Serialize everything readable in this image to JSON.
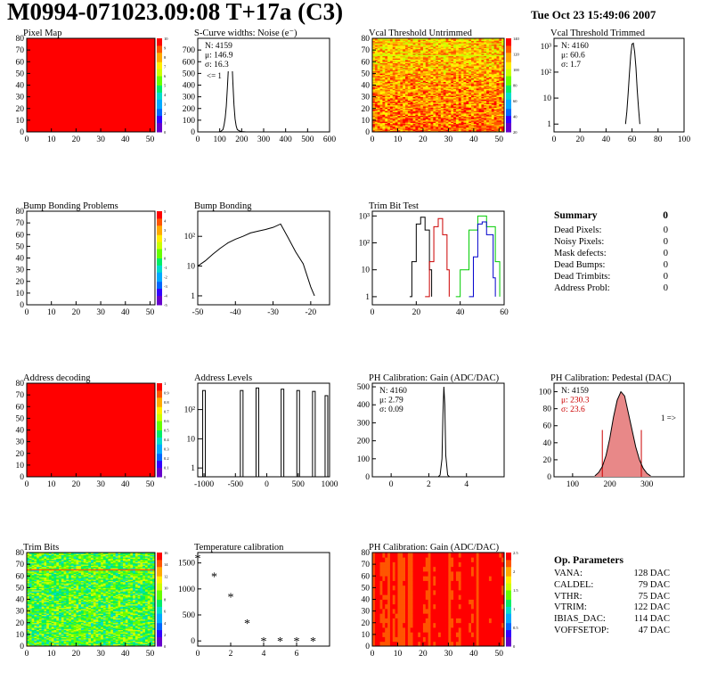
{
  "header": {
    "title": "M0994-071023.09:08 T+17a (C3)",
    "date": "Tue Oct 23 15:49:06 2007"
  },
  "colors": {
    "red_map": "#ff0000",
    "red_curve": "#cc0000",
    "green_curve": "#00cc00",
    "blue_curve": "#0000cc",
    "pedestal_fill": "#e88888",
    "stats_red": "#cc0000",
    "palette": [
      "#6600cc",
      "#3300ff",
      "#0066ff",
      "#00aaff",
      "#00ddcc",
      "#00ee66",
      "#66ff00",
      "#ccff00",
      "#ffee00",
      "#ffaa00",
      "#ff5500",
      "#ff0000"
    ]
  },
  "chart_data": [
    {
      "id": "pixel-map",
      "type": "heatmap",
      "title": "Pixel Map",
      "xlim": [
        0,
        52
      ],
      "ylim": [
        0,
        80
      ],
      "xticks": [
        0,
        10,
        20,
        30,
        40,
        50
      ],
      "yticks": [
        0,
        10,
        20,
        30,
        40,
        50,
        60,
        70,
        80
      ],
      "zticks": [
        "10",
        "9",
        "8",
        "7",
        "6",
        "5",
        "4",
        "3",
        "2",
        "1",
        "0"
      ],
      "fill": "uniform_max"
    },
    {
      "id": "s-curve",
      "type": "histogram",
      "title": "S-Curve widths: Noise (e⁻)",
      "xlim": [
        0,
        600
      ],
      "ylim": [
        0,
        800
      ],
      "xticks": [
        0,
        100,
        200,
        300,
        400,
        500,
        600
      ],
      "yticks": [
        0,
        100,
        200,
        300,
        400,
        500,
        600,
        700
      ],
      "stats": [
        "N: 4159",
        "μ: 146.9",
        "σ: 16.3"
      ],
      "annotation": "<= 1",
      "x": [
        95,
        105,
        115,
        120,
        125,
        130,
        135,
        140,
        145,
        150,
        155,
        160,
        165,
        170,
        175,
        180,
        190,
        200,
        220
      ],
      "y": [
        0,
        5,
        20,
        60,
        120,
        220,
        380,
        560,
        700,
        760,
        640,
        420,
        230,
        110,
        50,
        20,
        8,
        3,
        0
      ]
    },
    {
      "id": "vcal-untrimmed",
      "type": "heatmap",
      "title": "Vcal Threshold Untrimmed",
      "xlim": [
        0,
        52
      ],
      "ylim": [
        0,
        80
      ],
      "xticks": [
        0,
        10,
        20,
        30,
        40,
        50
      ],
      "yticks": [
        0,
        10,
        20,
        30,
        40,
        50,
        60,
        70,
        80
      ],
      "zticks": [
        "140",
        "120",
        "100",
        "80",
        "60",
        "40",
        "20"
      ],
      "fill": "noisy_orange"
    },
    {
      "id": "vcal-trimmed",
      "type": "histogram",
      "title": "Vcal Threshold Trimmed",
      "xlim": [
        0,
        100
      ],
      "ylim": [
        0.5,
        2000
      ],
      "log_y": true,
      "xticks": [
        0,
        20,
        40,
        60,
        80,
        100
      ],
      "yticks": [
        "1",
        "10",
        "10²",
        "10³"
      ],
      "stats": [
        "N: 4160",
        "μ: 60.6",
        "σ:   1.7"
      ],
      "x": [
        55,
        56,
        57,
        58,
        59,
        60,
        61,
        62,
        63,
        64,
        65,
        66
      ],
      "y": [
        1,
        3,
        15,
        90,
        450,
        1200,
        1300,
        600,
        150,
        20,
        4,
        1
      ]
    },
    {
      "id": "bump-problems",
      "type": "heatmap",
      "title": "Bump Bonding Problems",
      "xlim": [
        0,
        52
      ],
      "ylim": [
        0,
        80
      ],
      "xticks": [
        0,
        10,
        20,
        30,
        40,
        50
      ],
      "yticks": [
        0,
        10,
        20,
        30,
        40,
        50,
        60,
        70,
        80
      ],
      "zticks": [
        "5",
        "4",
        "3",
        "2",
        "1",
        "0",
        "-1",
        "-2",
        "-3",
        "-4",
        "-5"
      ],
      "fill": "empty"
    },
    {
      "id": "bump-bonding",
      "type": "histogram",
      "title": "Bump Bonding",
      "xlim": [
        -50,
        -15
      ],
      "ylim": [
        0.5,
        700
      ],
      "log_y": true,
      "xticks": [
        -50,
        -40,
        -30,
        -20
      ],
      "yticks": [
        "1",
        "10",
        "10²"
      ],
      "x": [
        -50,
        -48,
        -46,
        -44,
        -42,
        -40,
        -38,
        -36,
        -34,
        -32,
        -30,
        -28,
        -26,
        -24,
        -22,
        -20,
        -19
      ],
      "y": [
        10,
        15,
        25,
        40,
        60,
        80,
        100,
        130,
        150,
        170,
        200,
        260,
        90,
        30,
        12,
        2,
        1
      ]
    },
    {
      "id": "trim-bit-test",
      "type": "histogram",
      "title": "Trim Bit Test",
      "xlim": [
        0,
        60
      ],
      "ylim": [
        0.5,
        1500
      ],
      "log_y": true,
      "xticks": [
        0,
        20,
        40,
        60
      ],
      "yticks": [
        "1",
        "10",
        "10²",
        "10³"
      ],
      "series": [
        {
          "color": "#000000",
          "x": [
            17,
            18,
            20,
            22,
            24,
            26,
            27
          ],
          "y": [
            1,
            20,
            500,
            900,
            300,
            10,
            1
          ]
        },
        {
          "color": "#cc0000",
          "x": [
            24,
            26,
            28,
            30,
            32,
            34,
            35
          ],
          "y": [
            1,
            20,
            400,
            800,
            200,
            10,
            1
          ]
        },
        {
          "color": "#00cc00",
          "x": [
            38,
            40,
            44,
            48,
            52,
            56,
            58
          ],
          "y": [
            1,
            10,
            300,
            1000,
            400,
            20,
            1
          ]
        },
        {
          "color": "#0000cc",
          "x": [
            44,
            46,
            48,
            50,
            52,
            55,
            56
          ],
          "y": [
            1,
            30,
            500,
            600,
            200,
            5,
            1
          ]
        }
      ]
    },
    {
      "id": "address-decoding",
      "type": "heatmap",
      "title": "Address decoding",
      "xlim": [
        0,
        52
      ],
      "ylim": [
        0,
        80
      ],
      "xticks": [
        0,
        10,
        20,
        30,
        40,
        50
      ],
      "yticks": [
        0,
        10,
        20,
        30,
        40,
        50,
        60,
        70,
        80
      ],
      "zticks": [
        "1",
        "0.9",
        "0.8",
        "0.7",
        "0.6",
        "0.5",
        "0.4",
        "0.3",
        "0.2",
        "0.1",
        "0"
      ],
      "fill": "uniform_max"
    },
    {
      "id": "address-levels",
      "type": "histogram",
      "title": "Address Levels",
      "xlim": [
        -1100,
        1000
      ],
      "ylim": [
        0.5,
        800
      ],
      "log_y": true,
      "xticks": [
        -1000,
        -500,
        0,
        500,
        1000
      ],
      "yticks": [
        "1",
        "10",
        "10²"
      ],
      "peaks": [
        -1000,
        -400,
        -150,
        250,
        500,
        750,
        950
      ],
      "peak_heights": [
        450,
        450,
        550,
        500,
        450,
        420,
        300
      ]
    },
    {
      "id": "ph-gain",
      "type": "histogram",
      "title": "PH Calibration: Gain (ADC/DAC)",
      "xlim": [
        -1,
        6
      ],
      "ylim": [
        0,
        520
      ],
      "xticks": [
        0,
        2,
        4
      ],
      "yticks": [
        0,
        100,
        200,
        300,
        400,
        500
      ],
      "stats": [
        "N: 4160",
        "μ: 2.79",
        "σ: 0.09"
      ],
      "x": [
        2.5,
        2.6,
        2.7,
        2.75,
        2.8,
        2.85,
        2.9,
        3.0,
        3.1
      ],
      "y": [
        0,
        10,
        100,
        350,
        500,
        400,
        120,
        10,
        0
      ]
    },
    {
      "id": "ph-pedestal",
      "type": "histogram",
      "title": "PH Calibration: Pedestal (DAC)",
      "xlim": [
        50,
        400
      ],
      "ylim": [
        0,
        110
      ],
      "xticks": [
        100,
        200,
        300
      ],
      "yticks": [
        0,
        20,
        40,
        60,
        80,
        100
      ],
      "stats": [
        "N: 4159",
        "μ: 230.3",
        "σ: 23.6"
      ],
      "annotation": "1 =>",
      "x": [
        160,
        170,
        180,
        190,
        200,
        210,
        220,
        230,
        240,
        250,
        260,
        270,
        280,
        290,
        300,
        310
      ],
      "y": [
        1,
        5,
        12,
        25,
        45,
        70,
        90,
        100,
        95,
        75,
        55,
        35,
        20,
        10,
        4,
        1
      ]
    },
    {
      "id": "trim-bits",
      "type": "heatmap",
      "title": "Trim Bits",
      "xlim": [
        0,
        52
      ],
      "ylim": [
        0,
        80
      ],
      "xticks": [
        0,
        10,
        20,
        30,
        40,
        50
      ],
      "yticks": [
        0,
        10,
        20,
        30,
        40,
        50,
        60,
        70,
        80
      ],
      "zticks": [
        "16",
        "14",
        "12",
        "10",
        "8",
        "6",
        "4",
        "2",
        "0"
      ],
      "fill": "noisy_green"
    },
    {
      "id": "temperature",
      "type": "scatter",
      "title": "Temperature calibration",
      "xlim": [
        0,
        8
      ],
      "ylim": [
        -100,
        1700
      ],
      "xticks": [
        0,
        2,
        4,
        6
      ],
      "yticks": [
        0,
        500,
        1000,
        1500
      ],
      "x": [
        0,
        1,
        2,
        3,
        4,
        5,
        6,
        7
      ],
      "y": [
        1600,
        1250,
        850,
        350,
        0,
        0,
        0,
        0
      ]
    },
    {
      "id": "ph-gain-map",
      "type": "heatmap",
      "title": "PH Calibration: Gain (ADC/DAC)",
      "xlim": [
        0,
        52
      ],
      "ylim": [
        0,
        80
      ],
      "xticks": [
        0,
        10,
        20,
        30,
        40,
        50
      ],
      "yticks": [
        0,
        10,
        20,
        30,
        40,
        50,
        60,
        70,
        80
      ],
      "zticks": [
        "2.5",
        "2",
        "1.5",
        "1",
        "0.5",
        "0"
      ],
      "fill": "red_stripes"
    }
  ],
  "summary": {
    "title": "Summary",
    "total": "0",
    "rows": [
      {
        "label": "Dead Pixels:",
        "value": "0"
      },
      {
        "label": "Noisy Pixels:",
        "value": "0"
      },
      {
        "label": "Mask defects:",
        "value": "0"
      },
      {
        "label": "Dead Bumps:",
        "value": "0"
      },
      {
        "label": "Dead Trimbits:",
        "value": "0"
      },
      {
        "label": "Address Probl:",
        "value": "0"
      }
    ]
  },
  "op_parameters": {
    "title": "Op. Parameters",
    "rows": [
      {
        "label": "VANA:",
        "value": "128 DAC"
      },
      {
        "label": "CALDEL:",
        "value": "79 DAC"
      },
      {
        "label": "VTHR:",
        "value": "75 DAC"
      },
      {
        "label": "VTRIM:",
        "value": "122 DAC"
      },
      {
        "label": "IBIAS_DAC:",
        "value": "114 DAC"
      },
      {
        "label": "VOFFSETOP:",
        "value": "47 DAC"
      }
    ]
  }
}
